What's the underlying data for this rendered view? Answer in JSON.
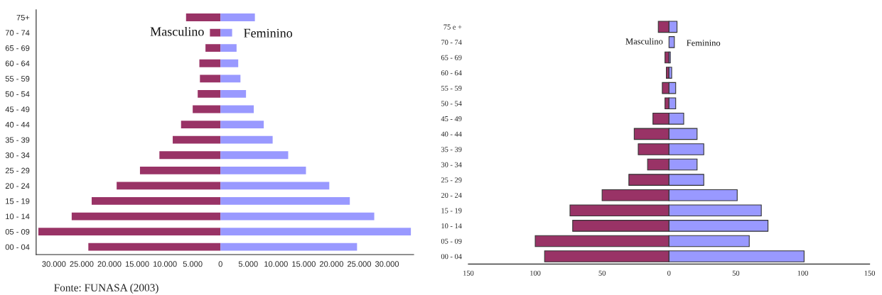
{
  "chart_data": [
    {
      "type": "bar",
      "orientation": "horizontal",
      "categories": [
        "75+",
        "70 - 74",
        "65 - 69",
        "60 - 64",
        "55 - 59",
        "50 - 54",
        "45 - 49",
        "40 - 44",
        "35 - 39",
        "30 - 34",
        "25 - 29",
        "20 - 24",
        "15 - 19",
        "10 - 14",
        "05 - 09",
        "00 - 04"
      ],
      "series": [
        {
          "name": "Masculino",
          "color": "#993366",
          "values": [
            -6200,
            -1900,
            -2700,
            -3800,
            -3700,
            -4100,
            -5000,
            -7100,
            -8600,
            -11000,
            -14500,
            -18700,
            -23200,
            -26800,
            -32800,
            -23800
          ]
        },
        {
          "name": "Feminino",
          "color": "#9999ff",
          "values": [
            6200,
            2100,
            2900,
            3200,
            3600,
            4600,
            6000,
            7800,
            9400,
            12200,
            15400,
            19600,
            23300,
            27700,
            34300,
            24600
          ]
        }
      ],
      "xlim": [
        -33200,
        34800
      ],
      "xticks": [
        {
          "value": -30000,
          "label": "30.000"
        },
        {
          "value": -25000,
          "label": "25.000"
        },
        {
          "value": -20000,
          "label": "20.000"
        },
        {
          "value": -15000,
          "label": "15.000"
        },
        {
          "value": -10000,
          "label": "10.000"
        },
        {
          "value": -5000,
          "label": "5.000"
        },
        0,
        {
          "value": 5000,
          "label": "5.000"
        },
        {
          "value": 10000,
          "label": "10.000"
        },
        {
          "value": 15000,
          "label": "15.000"
        },
        {
          "value": 20000,
          "label": "20.000"
        },
        {
          "value": 25000,
          "label": "25.000"
        },
        {
          "value": 30000,
          "label": "30.000"
        }
      ],
      "stacked": true,
      "grid": false,
      "legend": false,
      "annotations": [
        "Fonte: FUNASA (2003)"
      ]
    },
    {
      "type": "bar",
      "orientation": "horizontal",
      "categories": [
        "75 e +",
        "70 - 74",
        "65 - 69",
        "60 - 64",
        "55 - 59",
        "50 - 54",
        "45 - 49",
        "40 - 44",
        "35 - 39",
        "30 - 34",
        "25 - 29",
        "20 - 24",
        "15 - 19",
        "10 - 14",
        "05 - 09",
        "00 - 04"
      ],
      "series": [
        {
          "name": "Masculino",
          "color": "#993366",
          "values": [
            -8,
            null,
            -3,
            -2,
            -5,
            -3,
            -12,
            -26,
            -23,
            -16,
            -30,
            -50,
            -74,
            -72,
            -100,
            -93
          ]
        },
        {
          "name": "Feminino",
          "color": "#9999ff",
          "values": [
            6,
            4,
            1,
            2,
            5,
            5,
            11,
            21,
            26,
            21,
            26,
            51,
            69,
            74,
            60,
            101
          ]
        }
      ],
      "xlim": [
        -150,
        150
      ],
      "xticks": [
        {
          "value": -150,
          "label": "150"
        },
        {
          "value": -100,
          "label": "100"
        },
        {
          "value": -50,
          "label": "50"
        },
        0,
        50,
        100,
        150
      ],
      "stacked": true,
      "grid": false,
      "legend": false
    }
  ]
}
